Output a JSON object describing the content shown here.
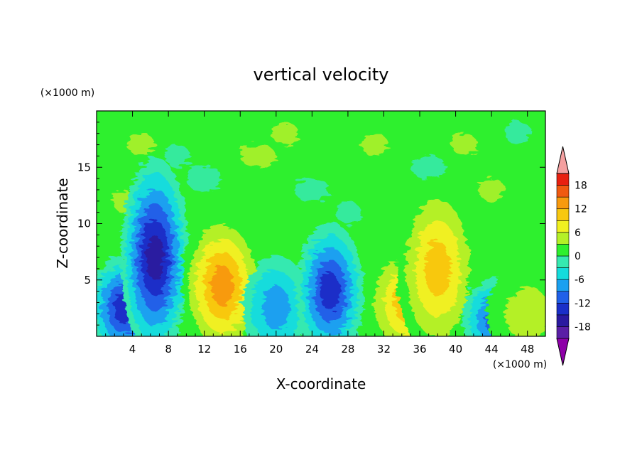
{
  "chart_data": {
    "type": "heatmap",
    "title": "vertical velocity",
    "xlabel": "X-coordinate",
    "ylabel": "Z-coordinate",
    "x_unit": "(×1000 m)",
    "y_unit": "(×1000 m)",
    "xlim": [
      0,
      50
    ],
    "ylim": [
      0,
      20
    ],
    "x_ticks": [
      4,
      8,
      12,
      16,
      20,
      24,
      28,
      32,
      36,
      40,
      44,
      48
    ],
    "y_ticks": [
      5,
      10,
      15
    ],
    "colorbar": {
      "levels": [
        -21,
        -18,
        -15,
        -12,
        -9,
        -6,
        -3,
        0,
        3,
        6,
        9,
        12,
        15,
        18,
        21
      ],
      "tick_labels": [
        -18,
        -12,
        -6,
        0,
        6,
        12,
        18
      ],
      "colors": [
        "#8e00a8",
        "#5a1fa6",
        "#2a1aa0",
        "#1a2fc8",
        "#2060e8",
        "#1aa0f0",
        "#14dcdc",
        "#36e9b0",
        "#2ef02e",
        "#b4f028",
        "#f0f020",
        "#f8c810",
        "#f89a0e",
        "#f05a10",
        "#e82010",
        "#f4a0a0"
      ],
      "extend": "both"
    },
    "features": [
      {
        "kind": "downdraft",
        "x": 3,
        "z": 2.5,
        "value": -15
      },
      {
        "kind": "downdraft",
        "x": 6.5,
        "z": 7,
        "value": -18
      },
      {
        "kind": "updraft",
        "x": 14,
        "z": 4.5,
        "value": 15
      },
      {
        "kind": "downdraft",
        "x": 20,
        "z": 2.5,
        "value": -9
      },
      {
        "kind": "downdraft",
        "x": 26,
        "z": 4,
        "value": -15
      },
      {
        "kind": "updraft",
        "x": 34.5,
        "z": 3,
        "value": 12
      },
      {
        "kind": "updraft",
        "x": 38,
        "z": 6,
        "value": 12
      },
      {
        "kind": "downdraft",
        "x": 44.5,
        "z": 1.5,
        "value": -12
      },
      {
        "kind": "updraft",
        "x": 48,
        "z": 2,
        "value": 6
      }
    ]
  }
}
